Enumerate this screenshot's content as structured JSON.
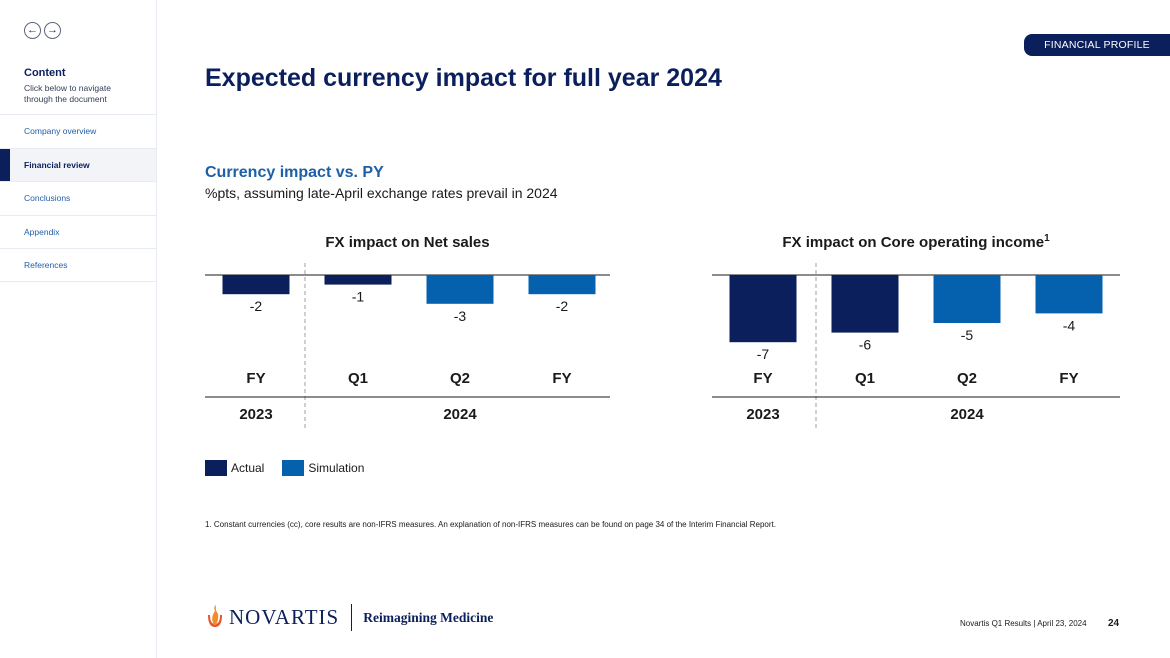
{
  "sidebar": {
    "title": "Content",
    "subtitle": "Click below to navigate through the document",
    "items": [
      {
        "label": "Company overview"
      },
      {
        "label": "Financial review"
      },
      {
        "label": "Conclusions"
      },
      {
        "label": "Appendix"
      },
      {
        "label": "References"
      }
    ],
    "active_index": 1
  },
  "tag": "FINANCIAL PROFILE",
  "title": "Expected currency impact for full year 2024",
  "subhead": "Currency impact vs. PY",
  "subtext": "%pts, assuming late-April exchange rates prevail in 2024",
  "colors": {
    "actual": "#0a1f5c",
    "simulation": "#0561ad"
  },
  "chart_data": [
    {
      "type": "bar",
      "title": "FX impact on Net sales",
      "title_sup": "",
      "categories": [
        "FY",
        "Q1",
        "Q2",
        "FY"
      ],
      "years": [
        {
          "label": "2023",
          "span": [
            0,
            0
          ]
        },
        {
          "label": "2024",
          "span": [
            1,
            3
          ]
        }
      ],
      "values": [
        -2,
        -1,
        -3,
        -2
      ],
      "value_labels": [
        "-2",
        "-1",
        "-3",
        "-2"
      ],
      "kind": [
        "Actual",
        "Actual",
        "Simulation",
        "Simulation"
      ]
    },
    {
      "type": "bar",
      "title": "FX impact on Core operating income",
      "title_sup": "1",
      "categories": [
        "FY",
        "Q1",
        "Q2",
        "FY"
      ],
      "years": [
        {
          "label": "2023",
          "span": [
            0,
            0
          ]
        },
        {
          "label": "2024",
          "span": [
            1,
            3
          ]
        }
      ],
      "values": [
        -7,
        -6,
        -5,
        -4
      ],
      "value_labels": [
        "-7",
        "-6",
        "-5",
        "-4"
      ],
      "kind": [
        "Actual",
        "Actual",
        "Simulation",
        "Simulation"
      ]
    }
  ],
  "legend": [
    {
      "label": "Actual",
      "color": "#0a1f5c"
    },
    {
      "label": "Simulation",
      "color": "#0561ad"
    }
  ],
  "footnote": "1. Constant currencies (cc), core results are non-IFRS measures. An explanation of non-IFRS measures can be found on page 34 of the Interim Financial Report.",
  "logo": {
    "wordmark": "NOVARTIS",
    "tagline": "Reimagining Medicine"
  },
  "footer": {
    "text": "Novartis Q1 Results | April 23, 2024",
    "page": "24"
  }
}
